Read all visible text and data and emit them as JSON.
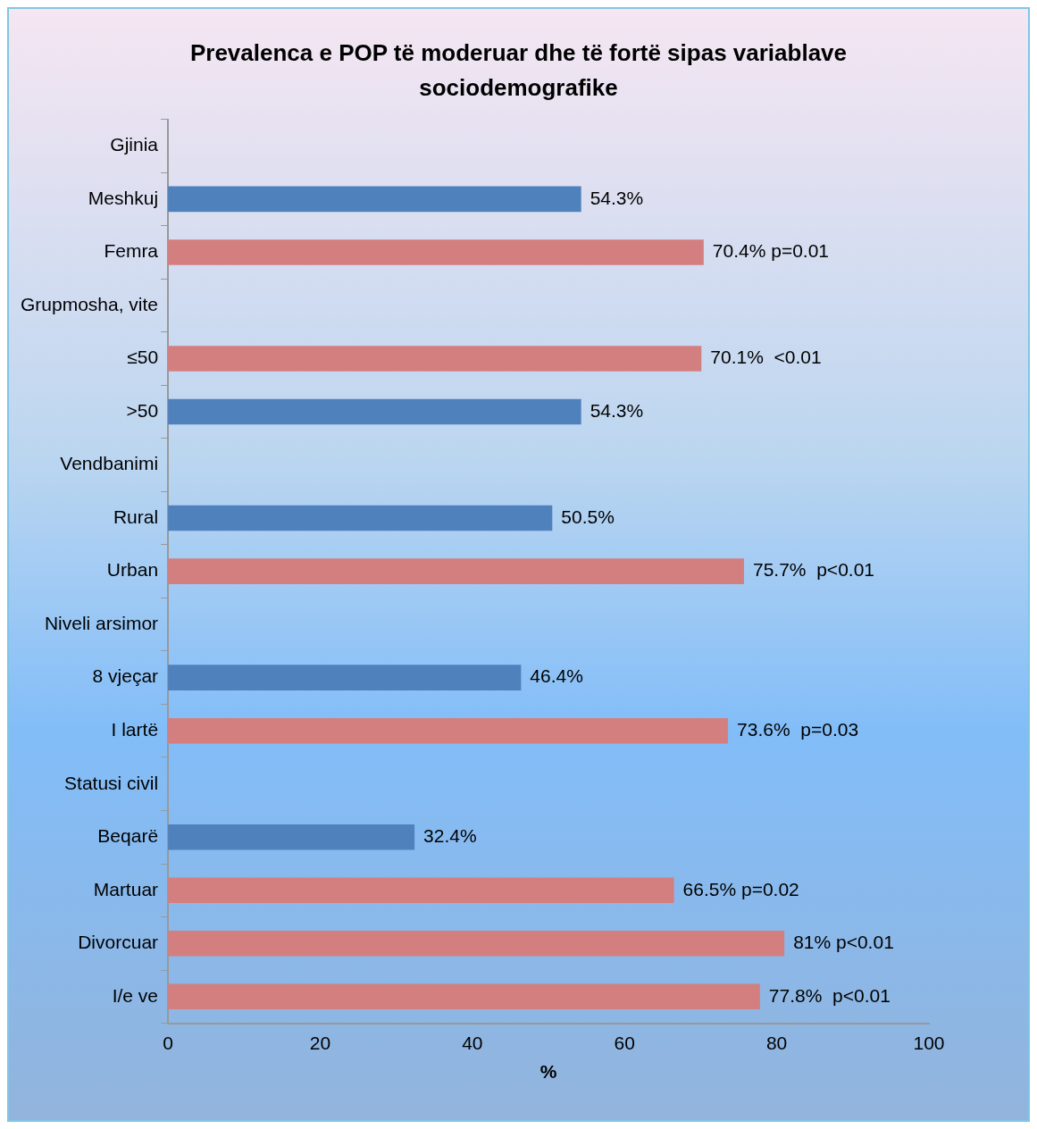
{
  "chart_data": {
    "type": "bar",
    "orientation": "horizontal",
    "title": "Prevalenca e POP të moderuar dhe të fortë sipas variablave sociodemografike",
    "xlabel": "%",
    "categories": [
      "Gjinia",
      "Meshkuj",
      "Femra",
      "Grupmosha, vite",
      "≤50",
      ">50",
      "Vendbanimi",
      "Rural",
      "Urban",
      "Niveli arsimor",
      "8 vjeçar",
      "I lartë",
      "Statusi civil",
      "Beqarë",
      "Martuar",
      "Divorcuar",
      "I/e ve"
    ],
    "values": [
      null,
      54.3,
      70.4,
      null,
      70.1,
      54.3,
      null,
      50.5,
      75.7,
      null,
      46.4,
      73.6,
      null,
      32.4,
      66.5,
      81,
      77.8
    ],
    "colors": [
      "#4f81bd",
      "#4f81bd",
      "#d47f7f",
      "#4f81bd",
      "#d47f7f",
      "#4f81bd",
      "#4f81bd",
      "#4f81bd",
      "#d47f7f",
      "#4f81bd",
      "#4f81bd",
      "#d47f7f",
      "#4f81bd",
      "#4f81bd",
      "#d47f7f",
      "#d47f7f",
      "#d47f7f"
    ],
    "value_labels": [
      null,
      "54.3%",
      "70.4% p=0.01",
      null,
      "70.1%  <0.01",
      "54.3%",
      null,
      "50.5%",
      "75.7%  p<0.01",
      null,
      "46.4%",
      "73.6%  p=0.03",
      null,
      "32.4%",
      "66.5% p=0.02",
      "81% p<0.01",
      "77.8%  p<0.01"
    ],
    "xlim": [
      0,
      100
    ],
    "xticks": [
      0,
      20,
      40,
      60,
      80,
      100
    ],
    "grid": false,
    "legend": false
  }
}
